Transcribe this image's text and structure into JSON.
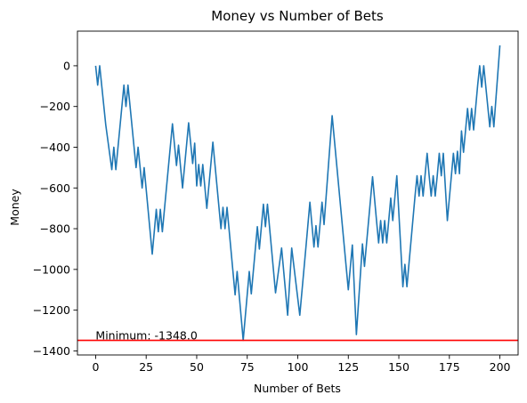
{
  "chart_data": {
    "type": "line",
    "title": "Money vs Number of Bets",
    "xlabel": "Number of Bets",
    "ylabel": "Money",
    "xlim": [
      -9,
      209
    ],
    "ylim": [
      -1420,
      170
    ],
    "xticks": [
      0,
      25,
      50,
      75,
      100,
      125,
      150,
      175,
      200
    ],
    "yticks": [
      -1400,
      -1200,
      -1000,
      -800,
      -600,
      -400,
      -200,
      0
    ],
    "ytick_labels": [
      "−1400",
      "−1200",
      "−1000",
      "−800",
      "−600",
      "−400",
      "−200",
      "0"
    ],
    "grid": false,
    "series": [
      {
        "color": "#1f77b4",
        "points": [
          [
            0,
            0
          ],
          [
            1,
            -95
          ],
          [
            2,
            0
          ],
          [
            5,
            -290
          ],
          [
            8,
            -510
          ],
          [
            9,
            -400
          ],
          [
            10,
            -510
          ],
          [
            14,
            -95
          ],
          [
            15,
            -200
          ],
          [
            16,
            -95
          ],
          [
            20,
            -500
          ],
          [
            21,
            -400
          ],
          [
            23,
            -600
          ],
          [
            24,
            -500
          ],
          [
            28,
            -925
          ],
          [
            30,
            -705
          ],
          [
            31,
            -815
          ],
          [
            32,
            -705
          ],
          [
            33,
            -815
          ],
          [
            38,
            -285
          ],
          [
            40,
            -490
          ],
          [
            41,
            -390
          ],
          [
            43,
            -600
          ],
          [
            46,
            -280
          ],
          [
            48,
            -480
          ],
          [
            49,
            -380
          ],
          [
            50,
            -590
          ],
          [
            51,
            -485
          ],
          [
            52,
            -590
          ],
          [
            53,
            -485
          ],
          [
            55,
            -700
          ],
          [
            58,
            -375
          ],
          [
            62,
            -800
          ],
          [
            63,
            -695
          ],
          [
            64,
            -800
          ],
          [
            65,
            -695
          ],
          [
            69,
            -1125
          ],
          [
            70,
            -1010
          ],
          [
            73,
            -1348
          ],
          [
            76,
            -1010
          ],
          [
            77,
            -1120
          ],
          [
            80,
            -790
          ],
          [
            81,
            -900
          ],
          [
            83,
            -680
          ],
          [
            84,
            -790
          ],
          [
            85,
            -680
          ],
          [
            89,
            -1115
          ],
          [
            92,
            -895
          ],
          [
            95,
            -1225
          ],
          [
            97,
            -895
          ],
          [
            101,
            -1225
          ],
          [
            104,
            -895
          ],
          [
            106,
            -670
          ],
          [
            108,
            -890
          ],
          [
            109,
            -785
          ],
          [
            110,
            -890
          ],
          [
            112,
            -670
          ],
          [
            113,
            -780
          ],
          [
            117,
            -245
          ],
          [
            125,
            -1100
          ],
          [
            127,
            -880
          ],
          [
            128,
            -1100
          ],
          [
            129,
            -1320
          ],
          [
            132,
            -875
          ],
          [
            133,
            -985
          ],
          [
            137,
            -545
          ],
          [
            139,
            -765
          ],
          [
            140,
            -870
          ],
          [
            141,
            -760
          ],
          [
            142,
            -870
          ],
          [
            143,
            -760
          ],
          [
            144,
            -870
          ],
          [
            146,
            -650
          ],
          [
            147,
            -760
          ],
          [
            149,
            -540
          ],
          [
            152,
            -1085
          ],
          [
            153,
            -975
          ],
          [
            154,
            -1085
          ],
          [
            158,
            -640
          ],
          [
            159,
            -540
          ],
          [
            160,
            -640
          ],
          [
            161,
            -540
          ],
          [
            162,
            -640
          ],
          [
            164,
            -430
          ],
          [
            165,
            -540
          ],
          [
            166,
            -640
          ],
          [
            167,
            -540
          ],
          [
            168,
            -640
          ],
          [
            169,
            -540
          ],
          [
            170,
            -430
          ],
          [
            171,
            -540
          ],
          [
            172,
            -430
          ],
          [
            174,
            -760
          ],
          [
            177,
            -430
          ],
          [
            178,
            -530
          ],
          [
            179,
            -420
          ],
          [
            180,
            -530
          ],
          [
            181,
            -320
          ],
          [
            182,
            -425
          ],
          [
            184,
            -210
          ],
          [
            185,
            -315
          ],
          [
            186,
            -210
          ],
          [
            187,
            -315
          ],
          [
            189,
            -95
          ],
          [
            190,
            0
          ],
          [
            191,
            -105
          ],
          [
            192,
            0
          ],
          [
            195,
            -300
          ],
          [
            196,
            -200
          ],
          [
            197,
            -300
          ],
          [
            200,
            100
          ]
        ]
      }
    ],
    "hline": {
      "y": -1348,
      "color": "#ff0000"
    },
    "annotation": {
      "text": "Minimum: -1348.0",
      "x": 0,
      "y": -1348
    }
  }
}
